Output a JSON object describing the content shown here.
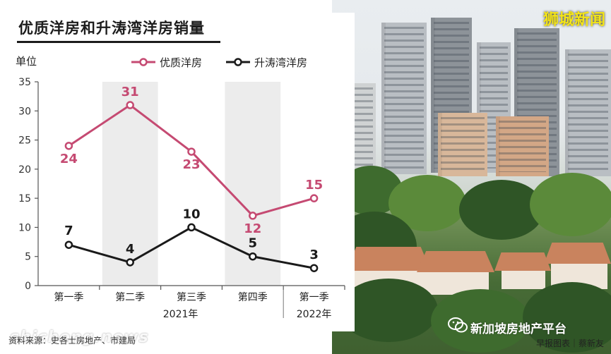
{
  "header": {
    "title": "优质洋房和升涛湾洋房销量",
    "brand": "狮城新闻"
  },
  "footer": {
    "source": "资料来源：史各士房地产、市建局",
    "credit": "早报图表｜蔡新友",
    "watermark_left": "shicheng.news",
    "watermark_right": "新加坡房地产平台"
  },
  "colors": {
    "series_premium": "#c54a72",
    "series_sentosa": "#1a1a1a",
    "shade": "#ececec",
    "brand_yellow": "#f3e419"
  },
  "chart_data": {
    "type": "line",
    "ylabel": "单位",
    "ylim": [
      0,
      35
    ],
    "yticks": [
      0,
      5,
      10,
      15,
      20,
      25,
      30,
      35
    ],
    "categories": [
      "第一季",
      "第二季",
      "第三季",
      "第四季",
      "第一季"
    ],
    "year_groups": [
      {
        "label": "2021年",
        "from": 0,
        "to": 3
      },
      {
        "label": "2022年",
        "from": 4,
        "to": 4
      }
    ],
    "shaded_columns": [
      1,
      3
    ],
    "legend_position": "top",
    "grid": false,
    "series": [
      {
        "name": "优质洋房",
        "values": [
          24,
          31,
          23,
          12,
          15
        ],
        "color": "#c54a72"
      },
      {
        "name": "升涛湾洋房",
        "values": [
          7,
          4,
          10,
          5,
          3
        ],
        "color": "#1a1a1a"
      }
    ]
  }
}
